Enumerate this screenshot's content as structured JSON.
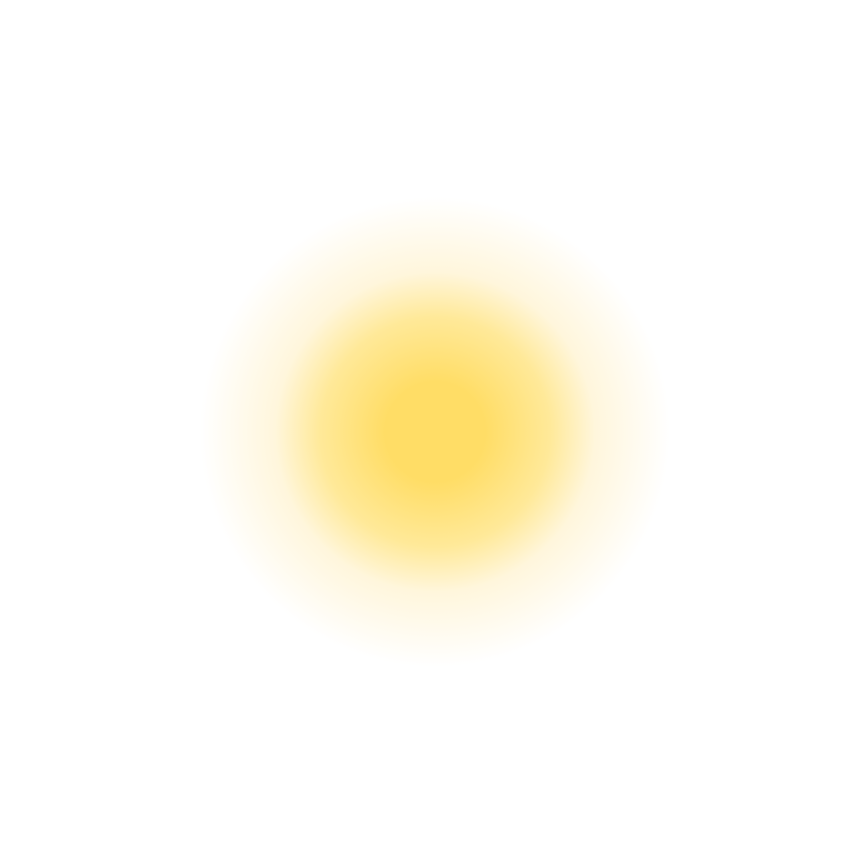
{
  "background_color": "#ffffff",
  "glow": {
    "icon": "soft-glow",
    "core_color": "#ffdd66",
    "mid_color": "#ffe999",
    "outer_color": "#fff6dc",
    "edge_color": "#ffffff"
  }
}
